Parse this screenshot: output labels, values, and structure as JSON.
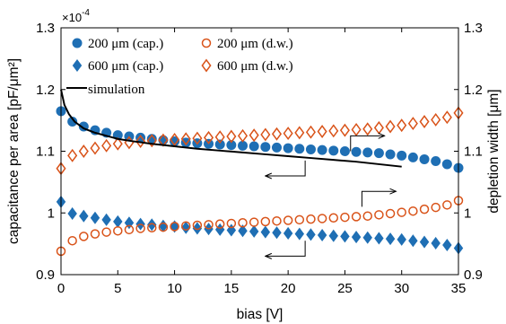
{
  "chart_data": {
    "type": "scatter",
    "xlabel": "bias [V]",
    "ylabel_left": "capacitance per area [pF/μm²]",
    "ylabel_right": "depletion width [μm]",
    "exponent_label": "×10",
    "exponent_power": "-4",
    "xlim": [
      0,
      35
    ],
    "ylim_left": [
      0.9,
      1.3
    ],
    "ylim_right": [
      0.9,
      1.3
    ],
    "x_ticks": [
      "0",
      "5",
      "10",
      "15",
      "20",
      "25",
      "30",
      "35"
    ],
    "y_ticks_left": [
      "0.9",
      "1",
      "1.1",
      "1.2",
      "1.3"
    ],
    "y_ticks_right": [
      "0.9",
      "1",
      "1.1",
      "1.2",
      "1.3"
    ],
    "colors": {
      "blue": "#1f6fb4",
      "orange": "#d95319",
      "black": "#000000"
    },
    "series": [
      {
        "name": "200 μm (cap.)",
        "marker": "circle-filled",
        "color": "#1f6fb4",
        "x": [
          0,
          1,
          2,
          3,
          4,
          5,
          6,
          7,
          8,
          9,
          10,
          11,
          12,
          13,
          14,
          15,
          16,
          17,
          18,
          19,
          20,
          21,
          22,
          23,
          24,
          25,
          26,
          27,
          28,
          29,
          30,
          31,
          32,
          33,
          34,
          35
        ],
        "y": [
          1.165,
          1.148,
          1.14,
          1.134,
          1.13,
          1.126,
          1.124,
          1.122,
          1.12,
          1.118,
          1.116,
          1.114,
          1.113,
          1.112,
          1.111,
          1.11,
          1.109,
          1.108,
          1.107,
          1.106,
          1.105,
          1.104,
          1.103,
          1.102,
          1.101,
          1.1,
          1.099,
          1.098,
          1.097,
          1.095,
          1.093,
          1.09,
          1.087,
          1.084,
          1.079,
          1.073
        ]
      },
      {
        "name": "600 μm (cap.)",
        "marker": "diamond-filled",
        "color": "#1f6fb4",
        "x": [
          0,
          1,
          2,
          3,
          4,
          5,
          6,
          7,
          8,
          9,
          10,
          11,
          12,
          13,
          14,
          15,
          16,
          17,
          18,
          19,
          20,
          21,
          22,
          23,
          24,
          25,
          26,
          27,
          28,
          29,
          30,
          31,
          32,
          33,
          34,
          35
        ],
        "y": [
          1.018,
          0.999,
          0.995,
          0.992,
          0.989,
          0.986,
          0.984,
          0.982,
          0.981,
          0.979,
          0.978,
          0.976,
          0.975,
          0.974,
          0.973,
          0.972,
          0.971,
          0.97,
          0.969,
          0.968,
          0.967,
          0.966,
          0.965,
          0.964,
          0.963,
          0.962,
          0.961,
          0.96,
          0.959,
          0.958,
          0.957,
          0.955,
          0.953,
          0.951,
          0.948,
          0.943
        ]
      },
      {
        "name": "200 μm (d.w.)",
        "marker": "circle-open",
        "color": "#d95319",
        "x": [
          0,
          1,
          2,
          3,
          4,
          5,
          6,
          7,
          8,
          9,
          10,
          11,
          12,
          13,
          14,
          15,
          16,
          17,
          18,
          19,
          20,
          21,
          22,
          23,
          24,
          25,
          26,
          27,
          28,
          29,
          30,
          31,
          32,
          33,
          34,
          35
        ],
        "y": [
          0.938,
          0.955,
          0.962,
          0.966,
          0.969,
          0.971,
          0.973,
          0.975,
          0.976,
          0.977,
          0.978,
          0.979,
          0.98,
          0.981,
          0.982,
          0.983,
          0.984,
          0.985,
          0.986,
          0.987,
          0.988,
          0.989,
          0.99,
          0.991,
          0.992,
          0.993,
          0.994,
          0.995,
          0.997,
          0.999,
          1.001,
          1.003,
          1.006,
          1.009,
          1.013,
          1.02
        ]
      },
      {
        "name": "600 μm (d.w.)",
        "marker": "diamond-open",
        "color": "#d95319",
        "x": [
          0,
          1,
          2,
          3,
          4,
          5,
          6,
          7,
          8,
          9,
          10,
          11,
          12,
          13,
          14,
          15,
          16,
          17,
          18,
          19,
          20,
          21,
          22,
          23,
          24,
          25,
          26,
          27,
          28,
          29,
          30,
          31,
          32,
          33,
          34,
          35
        ],
        "y": [
          1.072,
          1.093,
          1.1,
          1.105,
          1.109,
          1.112,
          1.114,
          1.116,
          1.117,
          1.118,
          1.119,
          1.12,
          1.121,
          1.122,
          1.123,
          1.124,
          1.125,
          1.126,
          1.127,
          1.128,
          1.129,
          1.13,
          1.131,
          1.132,
          1.133,
          1.134,
          1.135,
          1.136,
          1.138,
          1.14,
          1.142,
          1.145,
          1.148,
          1.151,
          1.155,
          1.162
        ]
      },
      {
        "name": "simulation",
        "marker": "line",
        "color": "#000000",
        "x": [
          0,
          0.3,
          0.7,
          1.2,
          2,
          3,
          4,
          5,
          6,
          8,
          10,
          12,
          14,
          16,
          18,
          20,
          22,
          24,
          26,
          28,
          30
        ],
        "y": [
          1.2,
          1.175,
          1.16,
          1.148,
          1.137,
          1.13,
          1.125,
          1.12,
          1.117,
          1.112,
          1.108,
          1.104,
          1.101,
          1.098,
          1.095,
          1.092,
          1.089,
          1.086,
          1.083,
          1.079,
          1.075
        ]
      }
    ],
    "legend_labels": [
      "200 μm (cap.)",
      "200 μm (d.w.)",
      "600 μm (cap.)",
      "600 μm (d.w.)",
      "simulation"
    ],
    "legend_position": "top-left",
    "grid": false,
    "annotations": [
      {
        "type": "bent-arrow",
        "direction": "right",
        "x": [
          25.5,
          25.5,
          28.5
        ],
        "y": [
          1.1,
          1.125,
          1.125
        ]
      },
      {
        "type": "bent-arrow",
        "direction": "left",
        "x": [
          21.5,
          21.5,
          18
        ],
        "y": [
          1.085,
          1.06,
          1.06
        ]
      },
      {
        "type": "bent-arrow",
        "direction": "right",
        "x": [
          26.5,
          26.5,
          29.5
        ],
        "y": [
          1.01,
          1.035,
          1.035
        ]
      },
      {
        "type": "bent-arrow",
        "direction": "left",
        "x": [
          21.5,
          21.5,
          18
        ],
        "y": [
          0.955,
          0.93,
          0.93
        ]
      }
    ]
  }
}
